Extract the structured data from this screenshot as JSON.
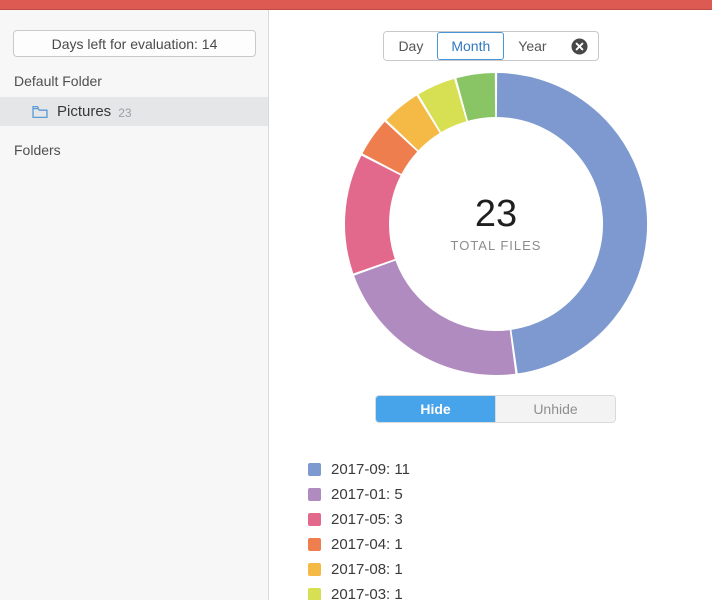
{
  "sidebar": {
    "evaluation_notice": "Days left for evaluation: 14",
    "sections": {
      "default_folder": "Default Folder",
      "folders": "Folders"
    },
    "selected_folder": {
      "name": "Pictures",
      "count": "23"
    }
  },
  "toolbar": {
    "tabs": [
      {
        "label": "Day",
        "active": false
      },
      {
        "label": "Month",
        "active": true
      },
      {
        "label": "Year",
        "active": false
      }
    ],
    "close_icon": "circle-x-icon"
  },
  "toggle": {
    "hide_label": "Hide",
    "unhide_label": "Unhide",
    "active": "Hide",
    "active_color": "#47a3ea"
  },
  "chart_data": {
    "type": "pie",
    "subtype": "donut",
    "title": "",
    "center_value": "23",
    "center_label": "TOTAL FILES",
    "total": 23,
    "legend_position": "bottom-left",
    "legend_format": "label: value",
    "segments": [
      {
        "label": "2017-09",
        "value": 11,
        "color": "#7d99cf",
        "legend_visible": true
      },
      {
        "label": "2017-01",
        "value": 5,
        "color": "#af8bc0",
        "legend_visible": true
      },
      {
        "label": "2017-05",
        "value": 3,
        "color": "#e2698c",
        "legend_visible": true
      },
      {
        "label": "2017-04",
        "value": 1,
        "color": "#ef7e4e",
        "legend_visible": true
      },
      {
        "label": "2017-08",
        "value": 1,
        "color": "#f5ba45",
        "legend_visible": true
      },
      {
        "label": "2017-03",
        "value": 1,
        "color": "#d7e052",
        "legend_visible": true
      },
      {
        "label": "",
        "value": 1,
        "color": "#8ac565",
        "legend_visible": false
      }
    ]
  }
}
